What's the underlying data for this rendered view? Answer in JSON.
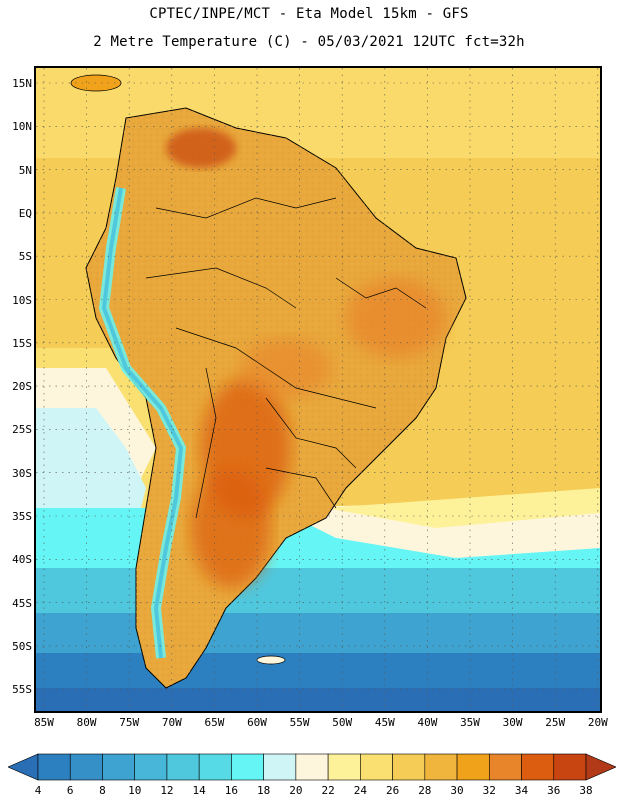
{
  "title": {
    "line1": "CPTEC/INPE/MCT -  Eta Model 15km - GFS",
    "line2": "2 Metre Temperature (C) - 05/03/2021 12UTC fct=32h"
  },
  "map": {
    "lat_labels": [
      "15N",
      "10N",
      "5N",
      "EQ",
      "5S",
      "10S",
      "15S",
      "20S",
      "25S",
      "30S",
      "35S",
      "40S",
      "45S",
      "50S",
      "55S"
    ],
    "lon_labels": [
      "85W",
      "80W",
      "75W",
      "70W",
      "65W",
      "60W",
      "55W",
      "50W",
      "45W",
      "40W",
      "35W",
      "30W",
      "25W",
      "20W"
    ],
    "ocean_color": "#f5cc55",
    "land_color": "#e8a83c"
  },
  "colorbar": {
    "labels": [
      "4",
      "6",
      "8",
      "10",
      "12",
      "14",
      "16",
      "18",
      "20",
      "22",
      "24",
      "26",
      "28",
      "30",
      "32",
      "34",
      "36",
      "38"
    ],
    "colors": [
      "#2a6fb5",
      "#2d80c0",
      "#3590c8",
      "#3ea3d0",
      "#48b6d8",
      "#4fc8de",
      "#56dbe6",
      "#66f5f5",
      "#cff5f7",
      "#fef6dc",
      "#fdf19a",
      "#f9e070",
      "#f5cc55",
      "#efb53d",
      "#f0a21a",
      "#e8842a",
      "#dc5d10",
      "#c84410",
      "#b23a18"
    ]
  }
}
